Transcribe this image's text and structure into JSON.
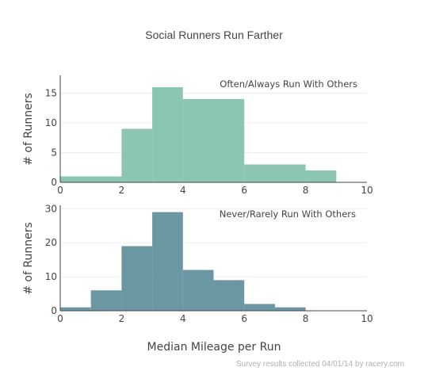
{
  "chart_data": {
    "type": "bar",
    "title": "Social Runners Run Farther",
    "xlabel": "Median Mileage per Run",
    "credit": "Survey results collected 04/01/14 by racery.com",
    "xlim": [
      0,
      10
    ],
    "xticks": [
      "0",
      "2",
      "4",
      "6",
      "8",
      "10"
    ],
    "panels": [
      {
        "name": "Often/Always Run With Others",
        "ylabel": "# of Runners",
        "ylim": [
          0,
          18
        ],
        "yticks": [
          "0",
          "5",
          "10",
          "15"
        ],
        "color": "#8cc5b2",
        "bins": [
          {
            "x0": 0,
            "x1": 2,
            "value": 1
          },
          {
            "x0": 2,
            "x1": 3,
            "value": 9
          },
          {
            "x0": 3,
            "x1": 4,
            "value": 16
          },
          {
            "x0": 4,
            "x1": 6,
            "value": 14
          },
          {
            "x0": 6,
            "x1": 8,
            "value": 3
          },
          {
            "x0": 8,
            "x1": 9,
            "value": 2
          }
        ]
      },
      {
        "name": "Never/Rarely Run With Others",
        "ylabel": "# of Runners",
        "ylim": [
          0,
          31
        ],
        "yticks": [
          "0",
          "10",
          "20",
          "30"
        ],
        "color": "#6b97a3",
        "bins": [
          {
            "x0": 0,
            "x1": 1,
            "value": 1
          },
          {
            "x0": 1,
            "x1": 2,
            "value": 6
          },
          {
            "x0": 2,
            "x1": 3,
            "value": 19
          },
          {
            "x0": 3,
            "x1": 4,
            "value": 29
          },
          {
            "x0": 4,
            "x1": 5,
            "value": 12
          },
          {
            "x0": 5,
            "x1": 6,
            "value": 9
          },
          {
            "x0": 6,
            "x1": 7,
            "value": 2
          },
          {
            "x0": 7,
            "x1": 8,
            "value": 1
          }
        ]
      }
    ]
  }
}
